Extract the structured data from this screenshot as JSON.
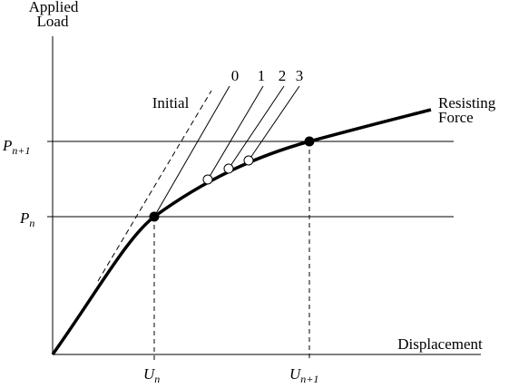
{
  "axes": {
    "y_label": [
      "Applied",
      "Load"
    ],
    "x_label": "Displacement"
  },
  "curve_label": [
    "Resisting",
    "Force"
  ],
  "tangent_label": "Initial",
  "iteration_labels": [
    "0",
    "1",
    "2",
    "3"
  ],
  "load_labels": [
    {
      "base": "P",
      "sub": "n+1"
    },
    {
      "base": "P",
      "sub": "n"
    }
  ],
  "displacement_labels": [
    {
      "base": "U",
      "sub": "n"
    },
    {
      "base": "U",
      "sub": "n+1"
    }
  ]
}
